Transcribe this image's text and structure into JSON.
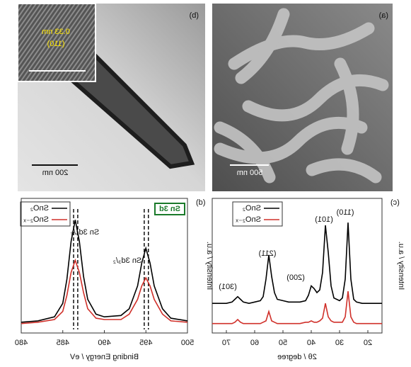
{
  "panels": [
    {
      "label": "(a)",
      "scale_bar": "500 nm"
    },
    {
      "label": "(b)",
      "scale_bar": "200 nm",
      "inset": {
        "spacing": "0.33 nm",
        "plane": "(110)"
      }
    }
  ],
  "chart_data": [
    {
      "type": "line",
      "panel_label": "(c)",
      "x_label": "2θ / degree",
      "y_label": "Intensity / a.u.",
      "xlim": [
        15,
        75
      ],
      "xticks": [
        20,
        30,
        40,
        50,
        60,
        70
      ],
      "ylim": [
        0,
        100
      ],
      "x": [
        15,
        20,
        22,
        24,
        25,
        26,
        27,
        28,
        29,
        30,
        32,
        33,
        34,
        35,
        36,
        37,
        38,
        39,
        40,
        41,
        42,
        44,
        46,
        48,
        50,
        52,
        53,
        54,
        55,
        56,
        57,
        58,
        60,
        62,
        64,
        65,
        66,
        67,
        68,
        70,
        75
      ],
      "series": [
        {
          "name": "SnO₂",
          "color": "#000000",
          "values": [
            22,
            22,
            22,
            23,
            25,
            40,
            82,
            40,
            26,
            24,
            26,
            35,
            60,
            80,
            45,
            32,
            30,
            33,
            35,
            28,
            24,
            23,
            23,
            23,
            24,
            25,
            30,
            42,
            58,
            40,
            27,
            24,
            23,
            22,
            23,
            25,
            27,
            25,
            23,
            22,
            22
          ]
        },
        {
          "name": "SnO₂₋ₓ",
          "color": "#d0302a",
          "values": [
            7,
            7,
            7,
            7,
            8,
            12,
            31,
            12,
            8,
            8,
            8,
            9,
            12,
            22,
            11,
            9,
            8,
            8,
            9,
            8,
            8,
            7,
            7,
            7,
            7,
            7,
            8,
            9,
            16,
            9,
            8,
            7,
            7,
            7,
            7,
            8,
            10,
            8,
            7,
            7,
            7
          ]
        }
      ],
      "annotations": [
        "(110)",
        "(101)",
        "(200)",
        "(211)",
        "(301)"
      ]
    },
    {
      "type": "line",
      "panel_label": "(d)",
      "x_label": "Binding Energy / eV",
      "y_label": "Intensity / a.u.",
      "box_label": "Sn 3d",
      "xlim": [
        500,
        480
      ],
      "xticks": [
        500,
        495,
        490,
        485,
        480
      ],
      "ylim": [
        0,
        100
      ],
      "x": [
        480,
        482,
        484,
        485,
        485.5,
        486,
        486.5,
        487,
        487.5,
        488,
        489,
        490,
        492,
        493,
        494,
        494.5,
        495,
        495.5,
        496,
        497,
        498,
        500
      ],
      "series": [
        {
          "name": "SnO₂",
          "color": "#000000",
          "values": [
            8,
            9,
            12,
            22,
            40,
            68,
            84,
            68,
            42,
            25,
            14,
            12,
            13,
            18,
            35,
            52,
            63,
            52,
            35,
            18,
            11,
            9
          ]
        },
        {
          "name": "SnO₂₋ₓ",
          "color": "#d0302a",
          "values": [
            7,
            8,
            10,
            16,
            28,
            45,
            54,
            45,
            30,
            18,
            11,
            10,
            10,
            14,
            25,
            35,
            41,
            35,
            25,
            14,
            9,
            8
          ]
        }
      ],
      "reference_lines": [
        486.3,
        486.8,
        494.8,
        495.3
      ],
      "annotations": [
        "Sn 3d₅/₂",
        "Sn 3d₃/₂"
      ]
    }
  ]
}
